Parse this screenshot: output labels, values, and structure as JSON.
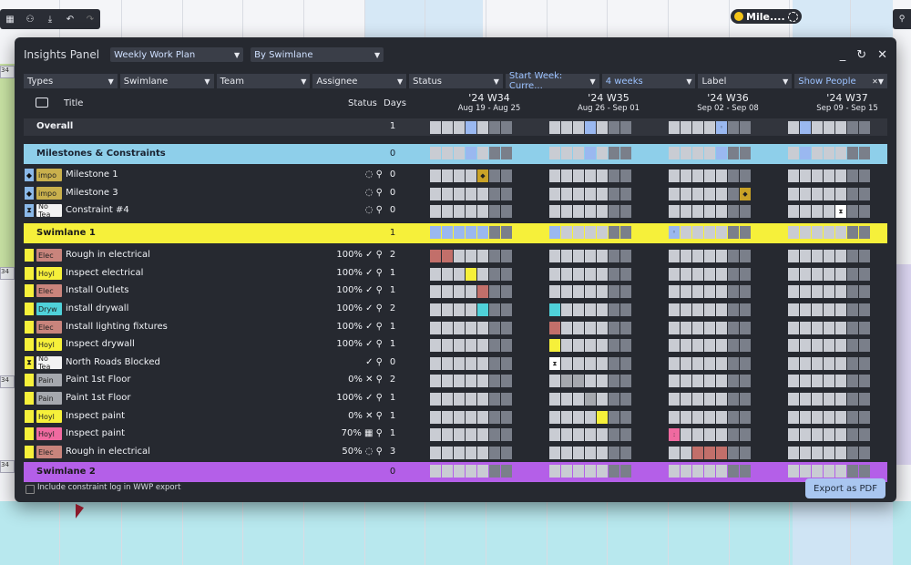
{
  "background": {
    "left_chips": [
      "34",
      "34",
      "34",
      "34"
    ],
    "top_right_chip": "Mile...."
  },
  "panel": {
    "title": "Insights Panel",
    "plan_select": "Weekly Work Plan",
    "group_select": "By Swimlane"
  },
  "filters": {
    "types": "Types",
    "swimlane": "Swimlane",
    "team": "Team",
    "assignee": "Assignee",
    "status": "Status",
    "start_week": "Start Week: Curre...",
    "weeks": "4 weeks",
    "label": "Label",
    "show_people": "Show People"
  },
  "columns": {
    "title": "Title",
    "status": "Status",
    "days": "Days"
  },
  "weeks": [
    {
      "label": "'24 W34",
      "range": "Aug 19 - Aug 25"
    },
    {
      "label": "'24 W35",
      "range": "Aug 26 - Sep 01"
    },
    {
      "label": "'24 W36",
      "range": "Sep 02 - Sep 08"
    },
    {
      "label": "'24 W37",
      "range": "Sep 09 - Sep 15"
    }
  ],
  "rows": [
    {
      "kind": "overall",
      "title": "Overall",
      "days": "1",
      "bg": "#32353d",
      "marks": {
        "3": "#9ab8f0",
        "10": "#9ab8f0",
        "18": "#9ab8f0",
        "22": "#9ab8f0",
        "31": "#9ab8f0"
      },
      "icons": {
        "18": "◦"
      }
    },
    {
      "kind": "section",
      "title": "Milestones & Constraints",
      "days": "0",
      "bg": "#8ecfea",
      "title_color": "#1a2230",
      "marks": {
        "3": "#9ab8f0",
        "10": "#9ab8f0",
        "18": "#9ab8f0",
        "22": "#9ab8f0",
        "31": "#9ab8f0"
      }
    },
    {
      "kind": "task",
      "title": "Milestone 1",
      "chip": "impo",
      "chip_color": "#c9b04d",
      "mark": "◆",
      "mark_bg": "#8ab8e8",
      "status": "◌ ⚲",
      "days": "0",
      "marks": {
        "4": "#c9a227"
      },
      "icons": {
        "4": "◆"
      }
    },
    {
      "kind": "task",
      "title": "Milestone 3",
      "chip": "impo",
      "chip_color": "#c9b04d",
      "mark": "◆",
      "mark_bg": "#8ab8e8",
      "status": "◌ ⚲",
      "days": "0",
      "marks": {
        "20": "#c9a227"
      },
      "icons": {
        "20": "◆"
      }
    },
    {
      "kind": "task",
      "title": "Constraint #4",
      "chip": "No Tea",
      "chip_color": "#f2f2f2",
      "mark": "⧗",
      "mark_bg": "#8ab8e8",
      "status": "◌ ⚲",
      "days": "0",
      "marks": {
        "25": "#ffffff"
      },
      "icons": {
        "25": "⧗"
      }
    },
    {
      "kind": "section",
      "title": "Swimlane 1",
      "days": "1",
      "bg": "#f6f03a",
      "title_color": "#1a1a1a",
      "marks": {
        "0": "#9ab8f0",
        "1": "#9ab8f0",
        "2": "#9ab8f0",
        "3": "#9ab8f0",
        "4": "#9ab8f0",
        "7": "#9ab8f0",
        "14": "#9ab8f0"
      },
      "icons": {
        "14": "◦"
      }
    },
    {
      "kind": "task",
      "title": "Rough in electrical",
      "chip": "Elec",
      "chip_color": "#c9847c",
      "mark": "",
      "mark_bg": "#f6f03a",
      "status": "100% ✓ ⚲",
      "days": "2",
      "marks": {
        "0": "#c26f6a",
        "1": "#c26f6a"
      }
    },
    {
      "kind": "task",
      "title": "Inspect electrical",
      "chip": "Hoyl",
      "chip_color": "#f6f03a",
      "mark": "",
      "mark_bg": "#f6f03a",
      "status": "100% ✓ ⚲",
      "days": "1",
      "marks": {
        "3": "#f6f03a"
      }
    },
    {
      "kind": "task",
      "title": "Install Outlets",
      "chip": "Elec",
      "chip_color": "#c9847c",
      "mark": "",
      "mark_bg": "#f6f03a",
      "status": "100% ✓ ⚲",
      "days": "1",
      "marks": {
        "4": "#c26f6a"
      }
    },
    {
      "kind": "task",
      "title": "install drywall",
      "chip": "Dryw",
      "chip_color": "#4fd1d9",
      "mark": "",
      "mark_bg": "#f6f03a",
      "status": "100% ✓ ⚲",
      "days": "2",
      "marks": {
        "4": "#4fd1d9",
        "7": "#4fd1d9"
      }
    },
    {
      "kind": "task",
      "title": "Install lighting fixtures",
      "chip": "Elec",
      "chip_color": "#c9847c",
      "mark": "",
      "mark_bg": "#f6f03a",
      "status": "100% ✓ ⚲",
      "days": "1",
      "marks": {
        "7": "#c26f6a"
      }
    },
    {
      "kind": "task",
      "title": "Inspect drywall",
      "chip": "Hoyl",
      "chip_color": "#f6f03a",
      "mark": "",
      "mark_bg": "#f6f03a",
      "status": "100% ✓ ⚲",
      "days": "1",
      "marks": {
        "7": "#f6f03a"
      }
    },
    {
      "kind": "task",
      "title": "North Roads Blocked",
      "chip": "No Tea",
      "chip_color": "#f2f2f2",
      "mark": "⧗",
      "mark_bg": "#f6f03a",
      "status": "✓ ⚲",
      "days": "0",
      "marks": {
        "7": "#ffffff"
      },
      "icons": {
        "7": "⧗"
      }
    },
    {
      "kind": "task",
      "title": "Paint 1st Floor",
      "chip": "Pain",
      "chip_color": "#a5a8ae",
      "mark": "",
      "mark_bg": "#f6f03a",
      "status": "0% ✕ ⚲",
      "days": "2",
      "marks": {
        "8": "#a5a8ae",
        "9": "#a5a8ae"
      }
    },
    {
      "kind": "task",
      "title": "Paint 1st Floor",
      "chip": "Pain",
      "chip_color": "#a5a8ae",
      "mark": "",
      "mark_bg": "#f6f03a",
      "status": "100% ✓ ⚲",
      "days": "1",
      "marks": {
        "10": "#a5a8ae"
      }
    },
    {
      "kind": "task",
      "title": "Inspect paint",
      "chip": "Hoyl",
      "chip_color": "#f6f03a",
      "mark": "",
      "mark_bg": "#f6f03a",
      "status": "0% ✕ ⚲",
      "days": "1",
      "marks": {
        "11": "#f6f03a"
      }
    },
    {
      "kind": "task",
      "title": "Inspect paint",
      "chip": "Hoyl",
      "chip_color": "#f06aa0",
      "mark": "",
      "mark_bg": "#f6f03a",
      "status": "70% ▦ ⚲",
      "days": "1",
      "marks": {
        "14": "#f06aa0"
      },
      "icons": {
        "14": ":"
      }
    },
    {
      "kind": "task",
      "title": "Rough in electrical",
      "chip": "Elec",
      "chip_color": "#c9847c",
      "mark": "",
      "mark_bg": "#f6f03a",
      "status": "50% ◌ ⚲",
      "days": "3",
      "marks": {
        "16": "#c26f6a",
        "17": "#c26f6a",
        "18": "#c26f6a"
      }
    },
    {
      "kind": "section",
      "title": "Swimlane 2",
      "days": "0",
      "bg": "#b45fe8",
      "title_color": "#1a1a1a",
      "marks": {}
    }
  ],
  "footer": {
    "checkbox_label": "Include constraint log in WWP export",
    "export_button": "Export as PDF"
  },
  "colors": {
    "panel_bg": "#262930",
    "cell": "#c9ccd3",
    "weekend_cell": "#7a7f8a",
    "accent": "#a9c6f0"
  }
}
